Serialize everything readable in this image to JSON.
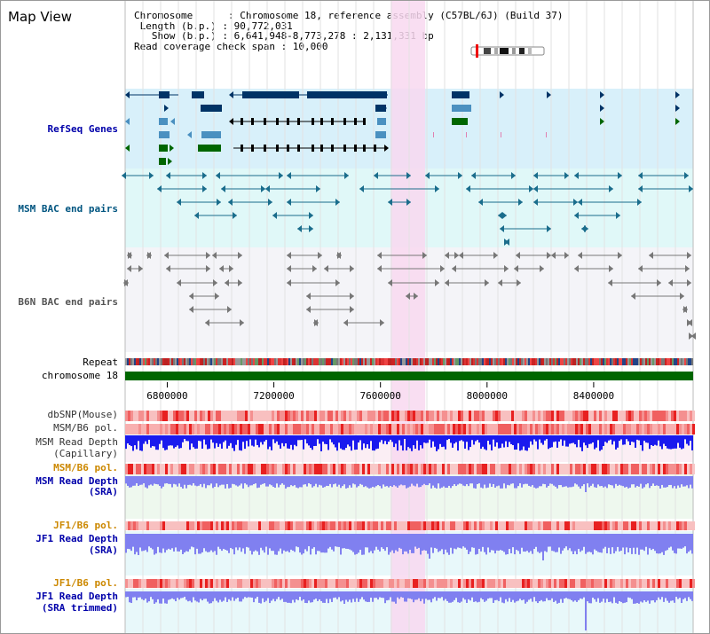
{
  "header": {
    "title": "Map View",
    "info_lines": [
      "Chromosome      : Chromosome 18, reference assembly (C57BL/6J) (Build 37)",
      " Length (b.p.) : 90,772,031",
      "   Show (b.p.) : 6,641,948-8,773,278 : 2,131,331 bp",
      "Read coverage check span : 10,000"
    ]
  },
  "tracks": {
    "refseq": {
      "label": "RefSeq Genes",
      "color": "#0000aa"
    },
    "msm_bac": {
      "label": "MSM BAC end pairs",
      "color": "#005580"
    },
    "b6n_bac": {
      "label": "B6N BAC end pairs",
      "color": "#555555"
    },
    "repeat": {
      "label": "Repeat"
    },
    "chromosome": {
      "label": "chromosome 18"
    },
    "dbsnp": {
      "label": "dbSNP(Mouse)"
    },
    "msm_b6_pol_1": {
      "label": "MSM/B6 pol."
    },
    "msm_read_depth_cap": {
      "label_1": "MSM Read Depth",
      "label_2": "(Capillary)"
    },
    "msm_b6_pol_2": {
      "label": "MSM/B6 pol.",
      "color": "#cc8800"
    },
    "msm_read_depth_sra": {
      "label_1": "MSM Read Depth",
      "label_2": "(SRA)"
    },
    "jf1_b6_pol_1": {
      "label": "JF1/B6 pol.",
      "color": "#cc8800"
    },
    "jf1_read_depth_sra": {
      "label_1": "JF1 Read Depth",
      "label_2": "(SRA)"
    },
    "jf1_b6_pol_2": {
      "label": "JF1/B6 pol.",
      "color": "#cc8800"
    },
    "jf1_read_depth_trim": {
      "label_1": "JF1 Read Depth",
      "label_2": "(SRA trimmed)"
    }
  },
  "axis": {
    "start_bp": 6641948,
    "end_bp": 8773278,
    "ticks": [
      "6800000",
      "7200000",
      "7600000",
      "8000000",
      "8400000"
    ]
  },
  "highlight": {
    "start_bp": 7638000,
    "end_bp": 7768000
  },
  "colors": {
    "refseq_bg": "#d8f0fa",
    "bac_bg": "#e0f8f8",
    "b6n_bg": "#f4f4f8",
    "highlight": "#f8d8f0",
    "chromosome": "#006600",
    "refseq_dark": "#003366",
    "refseq_mid": "#4a90c0",
    "refseq_green": "#006600",
    "read_depth_blue": "#1a1aee",
    "read_depth_light": "#8080f0",
    "pol_red": "#ee3333",
    "pol_pink": "#f8b8b8",
    "label_blue": "#0000aa",
    "label_orange": "#cc8800"
  }
}
